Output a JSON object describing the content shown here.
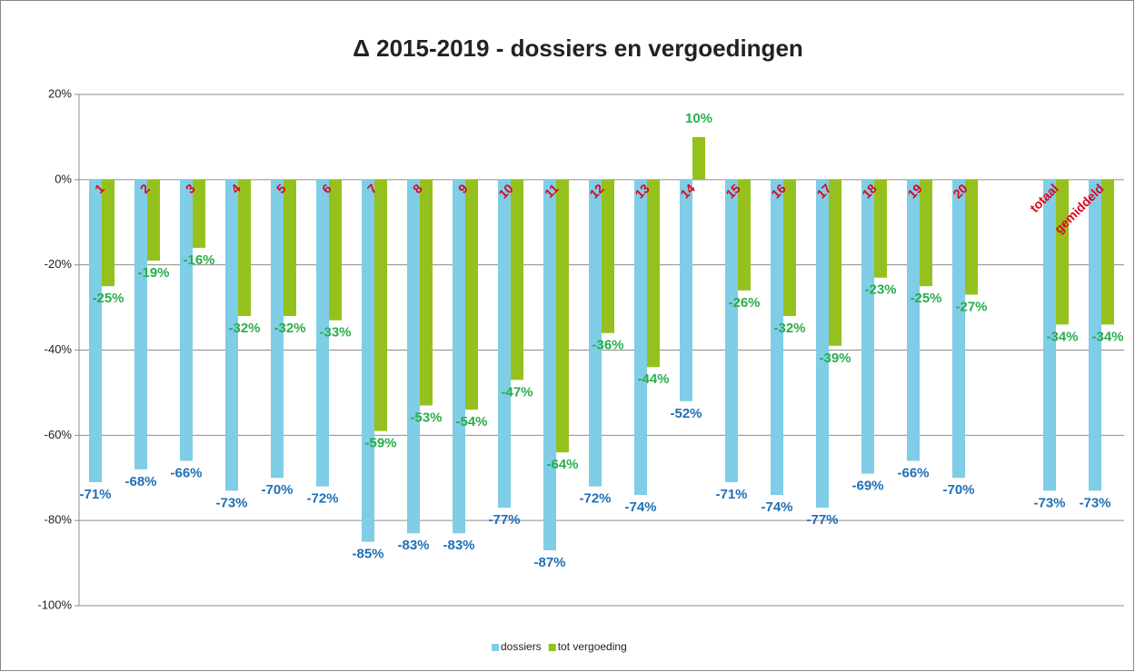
{
  "chart_data": {
    "type": "bar",
    "title": "Δ 2015-2019 - dossiers en vergoedingen",
    "categories": [
      "1",
      "2",
      "3",
      "4",
      "5",
      "6",
      "7",
      "8",
      "9",
      "10",
      "11",
      "12",
      "13",
      "14",
      "15",
      "16",
      "17",
      "18",
      "19",
      "20",
      null,
      "totaal",
      "gemiddeld"
    ],
    "series": [
      {
        "name": "dossiers",
        "color": "#7fcde6",
        "values": [
          -71,
          -68,
          -66,
          -73,
          -70,
          -72,
          -85,
          -83,
          -83,
          -77,
          -87,
          -72,
          -74,
          -52,
          -71,
          -74,
          -77,
          -69,
          -66,
          -70,
          null,
          -73,
          -73
        ],
        "value_labels": [
          "-71%",
          "-68%",
          "-66%",
          "-73%",
          "-70%",
          "-72%",
          "-85%",
          "-83%",
          "-83%",
          "-77%",
          "-87%",
          "-72%",
          "-74%",
          "-52%",
          "-71%",
          "-74%",
          "-77%",
          "-69%",
          "-66%",
          "-70%",
          null,
          "-73%",
          "-73%"
        ],
        "label_color": "#1f6fb5"
      },
      {
        "name": "tot vergoeding",
        "color": "#95c11f",
        "values": [
          -25,
          -19,
          -16,
          -32,
          -32,
          -33,
          -59,
          -53,
          -54,
          -47,
          -64,
          -36,
          -44,
          10,
          -26,
          -32,
          -39,
          -23,
          -25,
          -27,
          null,
          -34,
          -34
        ],
        "value_labels": [
          "-25%",
          "-19%",
          "-16%",
          "-32%",
          "-32%",
          "-33%",
          "-59%",
          "-53%",
          "-54%",
          "-47%",
          "-64%",
          "-36%",
          "-44%",
          "10%",
          "-26%",
          "-32%",
          "-39%",
          "-23%",
          "-25%",
          "-27%",
          null,
          "-34%",
          "-34%"
        ],
        "label_color": "#27ae4a"
      }
    ],
    "ylim": [
      -100,
      20
    ],
    "yticks": [
      {
        "value": -100,
        "label": "-100%"
      },
      {
        "value": -80,
        "label": "-80%"
      },
      {
        "value": -60,
        "label": "-60%"
      },
      {
        "value": -40,
        "label": "-40%"
      },
      {
        "value": -20,
        "label": "-20%"
      },
      {
        "value": 0,
        "label": "0%"
      },
      {
        "value": 20,
        "label": "20%"
      }
    ],
    "grid": true,
    "legend": "bottom",
    "category_color": "#e00019"
  }
}
